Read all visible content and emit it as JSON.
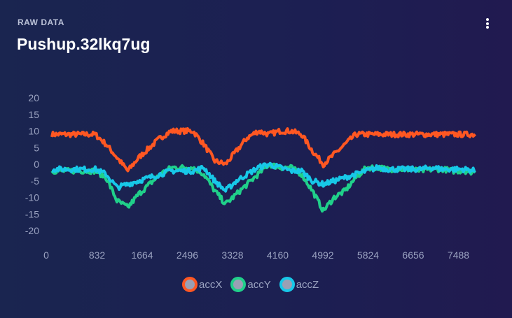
{
  "header": {
    "subtitle": "RAW DATA",
    "title": "Pushup.32lkq7ug",
    "menu_icon": "more-vertical-icon"
  },
  "chart_data": {
    "type": "line",
    "title": "Pushup.32lkq7ug",
    "xlabel": "",
    "ylabel": "",
    "xlim": [
      0,
      7900
    ],
    "ylim": [
      -20,
      20
    ],
    "yticks": [
      20,
      15,
      10,
      5,
      0,
      -5,
      -10,
      -15,
      -20
    ],
    "xticks": [
      0,
      832,
      1664,
      2496,
      3328,
      4160,
      4992,
      5824,
      6656,
      7488
    ],
    "x": [
      0,
      200,
      400,
      600,
      800,
      1000,
      1200,
      1400,
      1600,
      1800,
      2000,
      2200,
      2400,
      2600,
      2800,
      3000,
      3200,
      3400,
      3600,
      3800,
      4000,
      4200,
      4400,
      4600,
      4800,
      5000,
      5200,
      5400,
      5600,
      5800,
      6000,
      6200,
      6400,
      6600,
      6800,
      7000,
      7200,
      7400,
      7600,
      7800
    ],
    "series": [
      {
        "name": "accX",
        "color": "#ff5722",
        "values": [
          9,
          9,
          9,
          9,
          9,
          6,
          2,
          -2,
          2,
          5,
          8,
          10,
          10,
          10,
          6,
          1,
          0,
          4,
          8,
          10,
          9,
          10,
          10,
          9,
          4,
          0,
          3,
          6,
          9,
          9,
          9,
          9,
          9,
          9,
          9,
          9,
          9,
          9,
          9,
          9
        ]
      },
      {
        "name": "accY",
        "color": "#20d08a",
        "values": [
          -2,
          -2,
          -2,
          -2,
          -2,
          -4,
          -11,
          -13,
          -9,
          -6,
          -3,
          -1,
          -1,
          -1,
          -3,
          -8,
          -12,
          -9,
          -6,
          -3,
          0,
          -1,
          -1,
          -3,
          -8,
          -14,
          -10,
          -8,
          -4,
          -1,
          -1,
          -1.5,
          -1.5,
          -1.5,
          -2,
          -1.5,
          -1.5,
          -2,
          -2,
          -2.5
        ]
      },
      {
        "name": "accZ",
        "color": "#17c8e8",
        "values": [
          -1.5,
          -1.5,
          -1.5,
          -1.5,
          -1.5,
          -3,
          -7,
          -6,
          -5,
          -4,
          -3,
          -2,
          -2,
          -2,
          -1,
          -5,
          -8,
          -5,
          -3,
          -1,
          0,
          -1,
          -2,
          -2,
          -5,
          -6,
          -5,
          -4,
          -3,
          -2,
          -1,
          -1.5,
          -1.5,
          -1.5,
          -1.5,
          -1,
          -1.5,
          -1.5,
          -1.5,
          -2
        ]
      }
    ],
    "legend": "bottom"
  }
}
